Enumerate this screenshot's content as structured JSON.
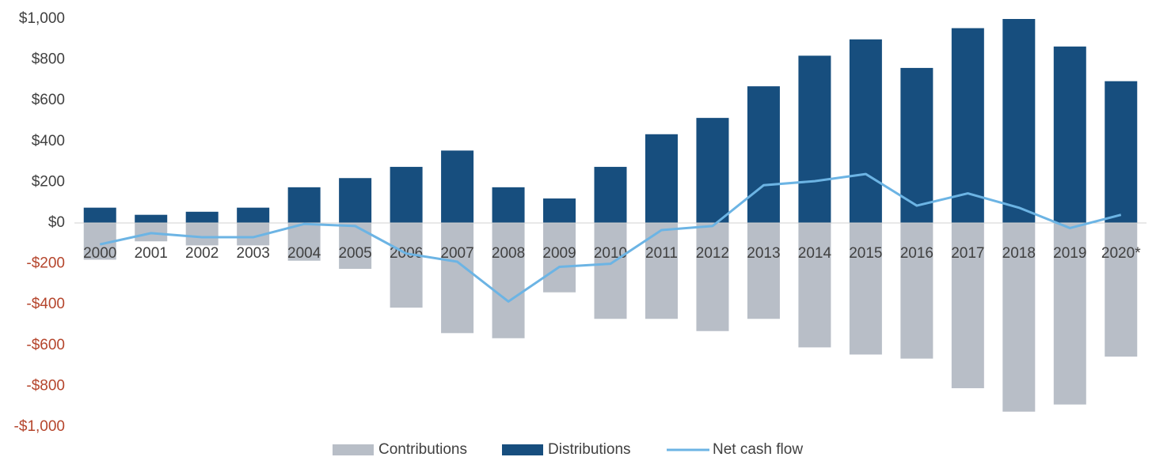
{
  "chart_data": {
    "type": "bar",
    "categories": [
      "2000",
      "2001",
      "2002",
      "2003",
      "2004",
      "2005",
      "2006",
      "2007",
      "2008",
      "2009",
      "2010",
      "2011",
      "2012",
      "2013",
      "2014",
      "2015",
      "2016",
      "2017",
      "2018",
      "2019",
      "2020*"
    ],
    "series": [
      {
        "name": "Contributions",
        "type": "bar",
        "color": "#b8bec7",
        "values": [
          -180,
          -90,
          -110,
          -110,
          -185,
          -225,
          -415,
          -540,
          -565,
          -340,
          -470,
          -470,
          -530,
          -470,
          -610,
          -645,
          -665,
          -810,
          -925,
          -890,
          -655
        ]
      },
      {
        "name": "Distributions",
        "type": "bar",
        "color": "#174e7e",
        "values": [
          75,
          40,
          55,
          75,
          175,
          220,
          275,
          355,
          175,
          120,
          275,
          435,
          515,
          670,
          820,
          900,
          760,
          955,
          1000,
          865,
          695
        ]
      },
      {
        "name": "Net cash flow",
        "type": "line",
        "color": "#6cb4e4",
        "values": [
          -105,
          -50,
          -70,
          -70,
          -5,
          -15,
          -150,
          -190,
          -385,
          -215,
          -200,
          -35,
          -15,
          185,
          205,
          240,
          85,
          145,
          75,
          -25,
          40
        ]
      }
    ],
    "ylim": [
      -1000,
      1000
    ],
    "yticks": [
      {
        "value": 1000,
        "label": "$1,000"
      },
      {
        "value": 800,
        "label": "$800"
      },
      {
        "value": 600,
        "label": "$600"
      },
      {
        "value": 400,
        "label": "$400"
      },
      {
        "value": 200,
        "label": "$200"
      },
      {
        "value": 0,
        "label": "$0"
      },
      {
        "value": -200,
        "label": "-$200"
      },
      {
        "value": -400,
        "label": "-$400"
      },
      {
        "value": -600,
        "label": "-$600"
      },
      {
        "value": -800,
        "label": "-$800"
      },
      {
        "value": -1000,
        "label": "-$1,000"
      }
    ],
    "tick_color": "#404040",
    "negative_tick_color": "#b5452c",
    "grid": false,
    "legend": "bottom"
  }
}
